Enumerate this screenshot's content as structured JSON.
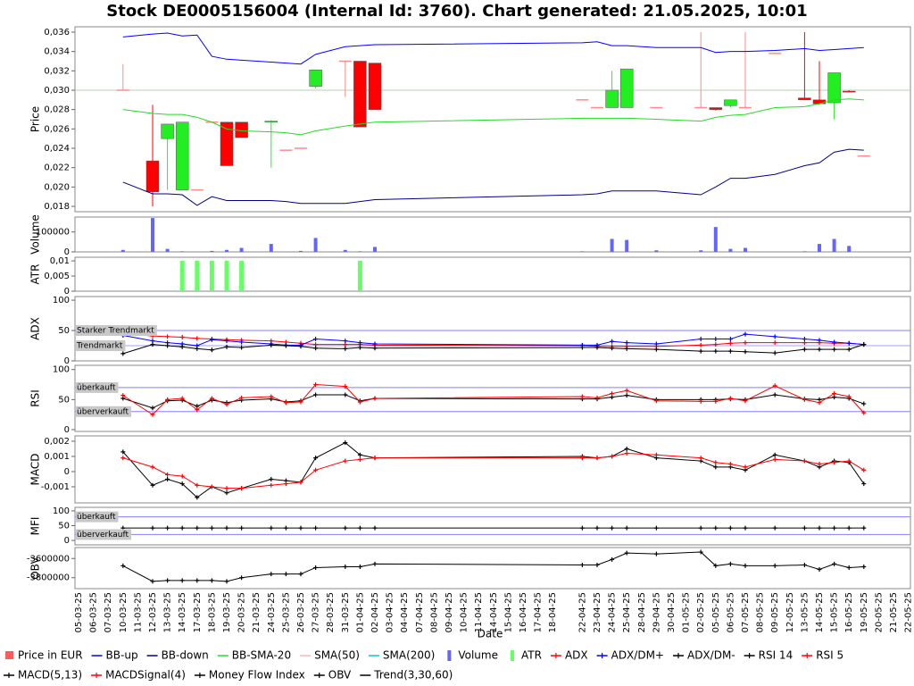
{
  "title": "Stock DE0005156004 (Internal Id: 3760). Chart generated: 21.05.2025, 10:01",
  "xlabel": "Date",
  "xticks": [
    "05-03-25",
    "06-03-25",
    "07-03-25",
    "10-03-25",
    "11-03-25",
    "12-03-25",
    "13-03-25",
    "14-03-25",
    "17-03-25",
    "18-03-25",
    "19-03-25",
    "20-03-25",
    "21-03-25",
    "24-03-25",
    "25-03-25",
    "26-03-25",
    "27-03-25",
    "28-03-25",
    "31-03-25",
    "01-04-25",
    "02-04-25",
    "03-04-25",
    "04-04-25",
    "07-04-25",
    "08-04-25",
    "09-04-25",
    "10-04-25",
    "11-04-25",
    "14-04-25",
    "15-04-25",
    "16-04-25",
    "17-04-25",
    "18-04-25",
    null,
    "22-04-25",
    "23-04-25",
    "24-04-25",
    "25-04-25",
    "28-04-25",
    "29-04-25",
    "30-04-25",
    "01-05-25",
    "02-05-25",
    "05-05-25",
    "06-05-25",
    "07-05-25",
    "08-05-25",
    "09-05-25",
    "12-05-25",
    "13-05-25",
    "14-05-25",
    "15-05-25",
    "16-05-25",
    "19-05-25",
    "20-05-25",
    "21-05-25",
    "22-05-25"
  ],
  "x": [
    "10-03-25",
    "12-03-25",
    "13-03-25",
    "14-03-25",
    "17-03-25",
    "18-03-25",
    "19-03-25",
    "20-03-25",
    "24-03-25",
    "25-03-25",
    "26-03-25",
    "27-03-25",
    "31-03-25",
    "01-04-25",
    "02-04-25",
    "22-04-25",
    "23-04-25",
    "24-04-25",
    "25-04-25",
    "29-04-25",
    "02-05-25",
    "05-05-25",
    "06-05-25",
    "07-05-25",
    "09-05-25",
    "13-05-25",
    "14-05-25",
    "15-05-25",
    "16-05-25",
    "19-05-25"
  ],
  "chart_data": [
    {
      "type": "candlestick",
      "ylabel": "Price",
      "ylim": [
        0.01745,
        0.03655
      ],
      "yticks": [
        {
          "value": 0.018,
          "label": "0,018"
        },
        {
          "value": 0.02,
          "label": "0,020"
        },
        {
          "value": 0.022,
          "label": "0,022"
        },
        {
          "value": 0.024,
          "label": "0,024"
        },
        {
          "value": 0.026,
          "label": "0,026"
        },
        {
          "value": 0.028,
          "label": "0,028"
        },
        {
          "value": 0.03,
          "label": "0,030"
        },
        {
          "value": 0.032,
          "label": "0,032"
        },
        {
          "value": 0.034,
          "label": "0,034"
        },
        {
          "value": 0.036,
          "label": "0,036"
        }
      ],
      "reference_lines": [
        {
          "value": 0.03,
          "color": "#b4d2b4"
        }
      ],
      "series": [
        {
          "name": "Price in EUR",
          "type": "candlestick",
          "color": "#ff5a5a",
          "up_color": "#22ee22",
          "down_color": "#ff0000",
          "flat_color": "#ff8c8c",
          "open": [
            0.03,
            0.0227,
            0.025,
            0.0197,
            0.0197,
            0.0267,
            0.0267,
            0.0267,
            0.0267,
            0.0238,
            0.024,
            0.0304,
            0.033,
            0.033,
            0.0328,
            0.029,
            0.0282,
            0.0282,
            0.0282,
            0.0282,
            0.0282,
            0.0282,
            0.0284,
            0.0282,
            0.0338,
            0.0292,
            0.029,
            0.0287,
            0.0299,
            0.0232
          ],
          "high": [
            0.0327,
            0.0285,
            0.0265,
            0.0267,
            0.0197,
            0.0267,
            0.0267,
            0.0267,
            0.0269,
            0.0238,
            0.024,
            0.0321,
            0.033,
            0.033,
            0.0328,
            0.029,
            0.0282,
            0.032,
            0.0322,
            0.0282,
            0.036,
            0.0282,
            0.029,
            0.036,
            0.0338,
            0.036,
            0.033,
            0.0318,
            0.03,
            0.0232
          ],
          "low": [
            0.03,
            0.018,
            0.0197,
            0.0197,
            0.0197,
            0.0267,
            0.0222,
            0.0251,
            0.022,
            0.0238,
            0.024,
            0.0302,
            0.0293,
            0.0262,
            0.028,
            0.029,
            0.0282,
            0.0282,
            0.0282,
            0.0282,
            0.0282,
            0.0279,
            0.0282,
            0.0282,
            0.0338,
            0.029,
            0.0285,
            0.027,
            0.0298,
            0.0232
          ],
          "close": [
            0.03,
            0.0195,
            0.0265,
            0.0267,
            0.0197,
            0.0267,
            0.0222,
            0.0251,
            0.0268,
            0.0238,
            0.024,
            0.0321,
            0.033,
            0.0262,
            0.028,
            0.029,
            0.0282,
            0.03,
            0.0322,
            0.0282,
            0.0282,
            0.028,
            0.029,
            0.0282,
            0.0338,
            0.029,
            0.0286,
            0.0318,
            0.0298,
            0.0232
          ]
        },
        {
          "name": "BB-up",
          "type": "line",
          "color": "#0000ff",
          "values": [
            0.0355,
            0.0358,
            0.0359,
            0.0356,
            0.0357,
            0.0335,
            0.0332,
            0.0331,
            0.0329,
            0.0328,
            0.0327,
            0.0337,
            0.0345,
            0.0346,
            0.0347,
            0.0349,
            0.035,
            0.0346,
            0.0346,
            0.0344,
            0.0344,
            0.0339,
            0.034,
            0.034,
            0.0341,
            0.0343,
            0.0341,
            0.0342,
            0.0343,
            0.0344
          ]
        },
        {
          "name": "BB-down",
          "type": "line",
          "color": "#00008b",
          "values": [
            0.0205,
            0.0193,
            0.0193,
            0.0192,
            0.0181,
            0.019,
            0.0186,
            0.0186,
            0.0186,
            0.0185,
            0.0183,
            0.0183,
            0.0183,
            0.0185,
            0.0187,
            0.0192,
            0.0193,
            0.0196,
            0.0196,
            0.0196,
            0.0192,
            0.02,
            0.0209,
            0.0209,
            0.0213,
            0.0222,
            0.0225,
            0.0236,
            0.0239,
            0.0238
          ]
        },
        {
          "name": "BB-SMA-20",
          "type": "line",
          "color": "#22dd22",
          "values": [
            0.028,
            0.0276,
            0.0275,
            0.0275,
            0.0272,
            0.0267,
            0.026,
            0.0258,
            0.0257,
            0.0256,
            0.0254,
            0.0258,
            0.0263,
            0.0265,
            0.0267,
            0.0271,
            0.0271,
            0.0271,
            0.0271,
            0.027,
            0.0268,
            0.0272,
            0.0274,
            0.0275,
            0.0282,
            0.0283,
            0.0286,
            0.029,
            0.0291,
            0.029
          ]
        },
        {
          "name": "SMA(50)",
          "type": "line",
          "color": "#ffb4b4"
        },
        {
          "name": "SMA(200)",
          "type": "line",
          "color": "#00cccc"
        }
      ]
    },
    {
      "type": "bar",
      "ylabel": "Volume",
      "ylim": [
        0,
        175000
      ],
      "yticks": [
        0,
        100000
      ],
      "series": [
        {
          "name": "Volume",
          "type": "bar",
          "color": "#6464ff",
          "values": [
            10000,
            170000,
            15000,
            3000,
            0,
            5000,
            10000,
            20000,
            40000,
            0,
            5000,
            70000,
            10000,
            3000,
            25000,
            3000,
            0,
            65000,
            60000,
            8000,
            8000,
            125000,
            15000,
            20000,
            0,
            3000,
            40000,
            65000,
            30000,
            0
          ]
        }
      ]
    },
    {
      "type": "bar",
      "ylabel": "ATR",
      "ylim": [
        0,
        0.0112
      ],
      "yticks": [
        0,
        {
          "value": 0.005,
          "label": "0,005"
        },
        {
          "value": 0.01,
          "label": "0,01"
        }
      ],
      "series": [
        {
          "name": "ATR",
          "type": "bar",
          "color": "#66ff66",
          "values": [
            0,
            0,
            0,
            0.01,
            0.01,
            0.01,
            0.01,
            0.01,
            0,
            0,
            0,
            0,
            0,
            0.01,
            0,
            0,
            0,
            0,
            0,
            0,
            0,
            0,
            0,
            0,
            0,
            0,
            0,
            0,
            0,
            0
          ]
        }
      ]
    },
    {
      "type": "line",
      "ylabel": "ADX",
      "ylim": [
        0,
        106
      ],
      "yticks": [
        0,
        50,
        100
      ],
      "reference_lines": [
        {
          "value": 50,
          "label": "Starker Trendmarkt",
          "color": "#8080ff"
        },
        {
          "value": 25,
          "label": "Trendmarkt",
          "color": "#a0a0ff"
        }
      ],
      "series": [
        {
          "name": "ADX",
          "type": "line",
          "color": "#ff0000",
          "marker": "cross",
          "values": [
            45,
            41,
            40,
            39,
            37,
            36,
            35,
            34,
            33,
            31,
            29,
            27,
            27,
            27,
            26,
            25,
            24,
            24,
            24,
            24,
            26,
            27,
            29,
            30,
            30,
            30,
            30,
            29,
            29,
            27
          ]
        },
        {
          "name": "ADX/DM+",
          "type": "line",
          "color": "#0000ff",
          "marker": "cross",
          "values": [
            42,
            33,
            30,
            28,
            25,
            35,
            33,
            31,
            28,
            26,
            26,
            36,
            33,
            30,
            28,
            26,
            26,
            32,
            30,
            28,
            36,
            36,
            36,
            44,
            40,
            36,
            34,
            31,
            29,
            27
          ]
        },
        {
          "name": "ADX/DM-",
          "type": "line",
          "color": "#000000",
          "marker": "cross",
          "values": [
            12,
            27,
            25,
            23,
            20,
            18,
            23,
            22,
            26,
            25,
            24,
            21,
            20,
            22,
            21,
            22,
            22,
            21,
            20,
            19,
            16,
            16,
            16,
            15,
            13,
            19,
            19,
            19,
            19,
            27
          ]
        }
      ]
    },
    {
      "type": "line",
      "ylabel": "RSI",
      "ylim": [
        -3,
        107
      ],
      "yticks": [
        0,
        50,
        100
      ],
      "reference_lines": [
        {
          "value": 70,
          "label": "überkauft",
          "color": "#8080ff"
        },
        {
          "value": 30,
          "label": "überverkauft",
          "color": "#8080ff"
        }
      ],
      "series": [
        {
          "name": "RSI 14",
          "type": "line",
          "color": "#000000",
          "marker": "cross",
          "values": [
            52,
            36,
            48,
            49,
            39,
            49,
            45,
            49,
            51,
            46,
            48,
            58,
            58,
            48,
            52,
            51,
            51,
            54,
            57,
            50,
            50,
            50,
            51,
            50,
            58,
            51,
            50,
            54,
            52,
            43
          ]
        },
        {
          "name": "RSI 5",
          "type": "line",
          "color": "#ff0000",
          "marker": "cross",
          "values": [
            57,
            25,
            50,
            52,
            33,
            52,
            42,
            53,
            55,
            45,
            46,
            75,
            72,
            46,
            52,
            55,
            53,
            60,
            65,
            48,
            47,
            47,
            52,
            48,
            73,
            50,
            45,
            60,
            55,
            28
          ]
        }
      ]
    },
    {
      "type": "line",
      "ylabel": "MACD",
      "ylim": [
        -0.00206,
        0.00235
      ],
      "yticks": [
        {
          "value": -0.001,
          "label": "-0,001"
        },
        0,
        {
          "value": 0.001,
          "label": "0,001"
        },
        {
          "value": 0.002,
          "label": "0,002"
        }
      ],
      "series": [
        {
          "name": "MACD(5,13)",
          "type": "line",
          "color": "#000000",
          "marker": "cross",
          "values": [
            0.0013,
            -0.0009,
            -0.0005,
            -0.0008,
            -0.0017,
            -0.001,
            -0.0014,
            -0.0011,
            -0.0005,
            -0.0006,
            -0.0007,
            0.0009,
            0.0019,
            0.0011,
            0.0009,
            0.001,
            0.0009,
            0.001,
            0.0015,
            0.0009,
            0.0007,
            0.0003,
            0.0003,
            0.0001,
            0.0011,
            0.0007,
            0.0003,
            0.0007,
            0.0006,
            -0.0008
          ]
        },
        {
          "name": "MACDSignal(4)",
          "type": "line",
          "color": "#ff0000",
          "marker": "cross",
          "values": [
            0.0009,
            0.0003,
            -0.0002,
            -0.0003,
            -0.0009,
            -0.001,
            -0.0011,
            -0.0011,
            -0.0009,
            -0.0008,
            -0.0007,
            0.0001,
            0.0007,
            0.0008,
            0.0009,
            0.0009,
            0.0009,
            0.001,
            0.0012,
            0.0011,
            0.0009,
            0.0006,
            0.0005,
            0.0003,
            0.0008,
            0.0007,
            0.0005,
            0.0006,
            0.0007,
            0.0001
          ]
        }
      ]
    },
    {
      "type": "line",
      "ylabel": "MFI",
      "ylim": [
        -15,
        112
      ],
      "yticks": [
        0,
        50,
        100
      ],
      "reference_lines": [
        {
          "value": 80,
          "label": "überkauft",
          "color": "#8080ff"
        },
        {
          "value": 20,
          "label": "überverkauft",
          "color": "#8080ff"
        }
      ],
      "series": [
        {
          "name": "Money Flow Index",
          "type": "line",
          "color": "#000000",
          "marker": "cross",
          "values": [
            42,
            42,
            42,
            42,
            42,
            42,
            42,
            42,
            42,
            42,
            42,
            42,
            42,
            42,
            42,
            42,
            42,
            42,
            42,
            42,
            42,
            42,
            42,
            42,
            42,
            42,
            42,
            42,
            42,
            42
          ]
        }
      ]
    },
    {
      "type": "line",
      "ylabel": "OBV",
      "ylim": [
        -3914000,
        -3486000
      ],
      "yticks": [
        -3800000,
        -3600000
      ],
      "series": [
        {
          "name": "OBV",
          "type": "line",
          "color": "#000000",
          "marker": "cross",
          "values": [
            -3676000,
            -3838000,
            -3829000,
            -3829000,
            -3829000,
            -3829000,
            -3838000,
            -3800000,
            -3762000,
            -3762000,
            -3762000,
            -3695000,
            -3686000,
            -3686000,
            -3657000,
            -3667000,
            -3667000,
            -3610000,
            -3543000,
            -3552000,
            -3533000,
            -3676000,
            -3657000,
            -3676000,
            -3676000,
            -3667000,
            -3714000,
            -3657000,
            -3695000,
            -3686000
          ]
        },
        {
          "name": "Trend(3,30,60)",
          "type": "line",
          "color": "#000000"
        }
      ]
    }
  ]
}
